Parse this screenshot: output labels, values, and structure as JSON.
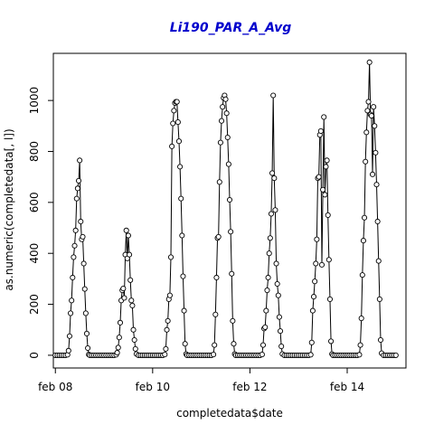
{
  "chart_data": {
    "type": "line",
    "title": "Li190_PAR_A_Avg",
    "xlabel": "completedata$date",
    "ylabel": "as.numeric(completedata[, l])",
    "ylim": [
      -50,
      1185
    ],
    "xlim": [
      "2008-02-07 23:00",
      "2008-02-15 05:00"
    ],
    "y_ticks": [
      0,
      200,
      400,
      600,
      800,
      1000
    ],
    "x_ticks": [
      {
        "value": "2008-02-08 00:00",
        "label": "feb 08"
      },
      {
        "value": "2008-02-10 00:00",
        "label": "feb 10"
      },
      {
        "value": "2008-02-12 00:00",
        "label": "feb 12"
      },
      {
        "value": "2008-02-14 00:00",
        "label": "feb 14"
      }
    ],
    "point_style": "open-circle",
    "line_color": "#000000",
    "series": [
      {
        "values": [
          [
            "2008-02-08 00:00",
            0
          ],
          [
            "2008-02-08 01:00",
            0
          ],
          [
            "2008-02-08 02:00",
            0
          ],
          [
            "2008-02-08 03:00",
            0
          ],
          [
            "2008-02-08 04:00",
            0
          ],
          [
            "2008-02-08 05:00",
            0
          ],
          [
            "2008-02-08 06:00",
            2
          ],
          [
            "2008-02-08 06:30",
            18
          ],
          [
            "2008-02-08 07:00",
            75
          ],
          [
            "2008-02-08 07:30",
            165
          ],
          [
            "2008-02-08 08:00",
            215
          ],
          [
            "2008-02-08 08:30",
            305
          ],
          [
            "2008-02-08 09:00",
            385
          ],
          [
            "2008-02-08 09:30",
            430
          ],
          [
            "2008-02-08 10:00",
            490
          ],
          [
            "2008-02-08 10:30",
            615
          ],
          [
            "2008-02-08 11:00",
            655
          ],
          [
            "2008-02-08 11:30",
            685
          ],
          [
            "2008-02-08 12:00",
            765
          ],
          [
            "2008-02-08 12:30",
            525
          ],
          [
            "2008-02-08 13:00",
            455
          ],
          [
            "2008-02-08 13:30",
            465
          ],
          [
            "2008-02-08 14:00",
            360
          ],
          [
            "2008-02-08 14:30",
            260
          ],
          [
            "2008-02-08 15:00",
            165
          ],
          [
            "2008-02-08 15:30",
            85
          ],
          [
            "2008-02-08 16:00",
            28
          ],
          [
            "2008-02-08 16:30",
            3
          ],
          [
            "2008-02-08 17:00",
            0
          ],
          [
            "2008-02-08 18:00",
            0
          ],
          [
            "2008-02-08 19:00",
            0
          ],
          [
            "2008-02-08 20:00",
            0
          ],
          [
            "2008-02-08 21:00",
            0
          ],
          [
            "2008-02-08 22:00",
            0
          ],
          [
            "2008-02-08 23:00",
            0
          ],
          [
            "2008-02-09 00:00",
            0
          ],
          [
            "2008-02-09 01:00",
            0
          ],
          [
            "2008-02-09 02:00",
            0
          ],
          [
            "2008-02-09 03:00",
            0
          ],
          [
            "2008-02-09 04:00",
            0
          ],
          [
            "2008-02-09 05:00",
            0
          ],
          [
            "2008-02-09 06:00",
            2
          ],
          [
            "2008-02-09 06:30",
            10
          ],
          [
            "2008-02-09 07:00",
            30
          ],
          [
            "2008-02-09 07:30",
            70
          ],
          [
            "2008-02-09 08:00",
            128
          ],
          [
            "2008-02-09 08:30",
            215
          ],
          [
            "2008-02-09 09:00",
            255
          ],
          [
            "2008-02-09 09:30",
            262
          ],
          [
            "2008-02-09 10:00",
            225
          ],
          [
            "2008-02-09 10:30",
            395
          ],
          [
            "2008-02-09 11:00",
            490
          ],
          [
            "2008-02-09 11:30",
            380
          ],
          [
            "2008-02-09 12:00",
            470
          ],
          [
            "2008-02-09 12:30",
            395
          ],
          [
            "2008-02-09 13:00",
            295
          ],
          [
            "2008-02-09 13:30",
            215
          ],
          [
            "2008-02-09 14:00",
            195
          ],
          [
            "2008-02-09 14:30",
            100
          ],
          [
            "2008-02-09 15:00",
            60
          ],
          [
            "2008-02-09 15:30",
            25
          ],
          [
            "2008-02-09 16:00",
            5
          ],
          [
            "2008-02-09 17:00",
            0
          ],
          [
            "2008-02-09 18:00",
            0
          ],
          [
            "2008-02-09 19:00",
            0
          ],
          [
            "2008-02-09 20:00",
            0
          ],
          [
            "2008-02-09 21:00",
            0
          ],
          [
            "2008-02-09 22:00",
            0
          ],
          [
            "2008-02-09 23:00",
            0
          ],
          [
            "2008-02-10 00:00",
            0
          ],
          [
            "2008-02-10 01:00",
            0
          ],
          [
            "2008-02-10 02:00",
            0
          ],
          [
            "2008-02-10 03:00",
            0
          ],
          [
            "2008-02-10 04:00",
            0
          ],
          [
            "2008-02-10 05:00",
            0
          ],
          [
            "2008-02-10 06:00",
            3
          ],
          [
            "2008-02-10 06:30",
            25
          ],
          [
            "2008-02-10 07:00",
            100
          ],
          [
            "2008-02-10 07:30",
            135
          ],
          [
            "2008-02-10 08:00",
            220
          ],
          [
            "2008-02-10 08:30",
            235
          ],
          [
            "2008-02-10 09:00",
            385
          ],
          [
            "2008-02-10 09:30",
            820
          ],
          [
            "2008-02-10 10:00",
            910
          ],
          [
            "2008-02-10 10:30",
            960
          ],
          [
            "2008-02-10 11:00",
            990
          ],
          [
            "2008-02-10 11:30",
            995
          ],
          [
            "2008-02-10 12:00",
            995
          ],
          [
            "2008-02-10 12:30",
            915
          ],
          [
            "2008-02-10 13:00",
            840
          ],
          [
            "2008-02-10 13:30",
            740
          ],
          [
            "2008-02-10 14:00",
            615
          ],
          [
            "2008-02-10 14:30",
            470
          ],
          [
            "2008-02-10 15:00",
            310
          ],
          [
            "2008-02-10 15:30",
            175
          ],
          [
            "2008-02-10 16:00",
            45
          ],
          [
            "2008-02-10 16:30",
            5
          ],
          [
            "2008-02-10 17:00",
            0
          ],
          [
            "2008-02-10 18:00",
            0
          ],
          [
            "2008-02-10 19:00",
            0
          ],
          [
            "2008-02-10 20:00",
            0
          ],
          [
            "2008-02-10 21:00",
            0
          ],
          [
            "2008-02-10 22:00",
            0
          ],
          [
            "2008-02-10 23:00",
            0
          ],
          [
            "2008-02-11 00:00",
            0
          ],
          [
            "2008-02-11 01:00",
            0
          ],
          [
            "2008-02-11 02:00",
            0
          ],
          [
            "2008-02-11 03:00",
            0
          ],
          [
            "2008-02-11 04:00",
            0
          ],
          [
            "2008-02-11 05:00",
            0
          ],
          [
            "2008-02-11 06:00",
            3
          ],
          [
            "2008-02-11 06:30",
            40
          ],
          [
            "2008-02-11 07:00",
            160
          ],
          [
            "2008-02-11 07:30",
            305
          ],
          [
            "2008-02-11 08:00",
            460
          ],
          [
            "2008-02-11 08:30",
            465
          ],
          [
            "2008-02-11 09:00",
            680
          ],
          [
            "2008-02-11 09:30",
            835
          ],
          [
            "2008-02-11 10:00",
            920
          ],
          [
            "2008-02-11 10:30",
            975
          ],
          [
            "2008-02-11 11:00",
            1010
          ],
          [
            "2008-02-11 11:30",
            1020
          ],
          [
            "2008-02-11 12:00",
            1005
          ],
          [
            "2008-02-11 12:30",
            950
          ],
          [
            "2008-02-11 13:00",
            855
          ],
          [
            "2008-02-11 13:30",
            750
          ],
          [
            "2008-02-11 14:00",
            610
          ],
          [
            "2008-02-11 14:30",
            485
          ],
          [
            "2008-02-11 15:00",
            320
          ],
          [
            "2008-02-11 15:30",
            135
          ],
          [
            "2008-02-11 16:00",
            45
          ],
          [
            "2008-02-11 16:30",
            5
          ],
          [
            "2008-02-11 17:00",
            0
          ],
          [
            "2008-02-11 18:00",
            0
          ],
          [
            "2008-02-11 19:00",
            0
          ],
          [
            "2008-02-11 20:00",
            0
          ],
          [
            "2008-02-11 21:00",
            0
          ],
          [
            "2008-02-11 22:00",
            0
          ],
          [
            "2008-02-11 23:00",
            0
          ],
          [
            "2008-02-12 00:00",
            0
          ],
          [
            "2008-02-12 01:00",
            0
          ],
          [
            "2008-02-12 02:00",
            0
          ],
          [
            "2008-02-12 03:00",
            0
          ],
          [
            "2008-02-12 04:00",
            0
          ],
          [
            "2008-02-12 05:00",
            0
          ],
          [
            "2008-02-12 06:00",
            3
          ],
          [
            "2008-02-12 06:30",
            40
          ],
          [
            "2008-02-12 07:00",
            105
          ],
          [
            "2008-02-12 07:30",
            110
          ],
          [
            "2008-02-12 08:00",
            175
          ],
          [
            "2008-02-12 08:30",
            255
          ],
          [
            "2008-02-12 09:00",
            305
          ],
          [
            "2008-02-12 09:30",
            400
          ],
          [
            "2008-02-12 10:00",
            460
          ],
          [
            "2008-02-12 10:30",
            555
          ],
          [
            "2008-02-12 11:00",
            715
          ],
          [
            "2008-02-12 11:30",
            1020
          ],
          [
            "2008-02-12 12:00",
            695
          ],
          [
            "2008-02-12 12:30",
            570
          ],
          [
            "2008-02-12 13:00",
            360
          ],
          [
            "2008-02-12 13:30",
            280
          ],
          [
            "2008-02-12 14:00",
            235
          ],
          [
            "2008-02-12 14:30",
            150
          ],
          [
            "2008-02-12 15:00",
            95
          ],
          [
            "2008-02-12 15:30",
            35
          ],
          [
            "2008-02-12 16:00",
            5
          ],
          [
            "2008-02-12 17:00",
            0
          ],
          [
            "2008-02-12 18:00",
            0
          ],
          [
            "2008-02-12 19:00",
            0
          ],
          [
            "2008-02-12 20:00",
            0
          ],
          [
            "2008-02-12 21:00",
            0
          ],
          [
            "2008-02-12 22:00",
            0
          ],
          [
            "2008-02-12 23:00",
            0
          ],
          [
            "2008-02-13 00:00",
            0
          ],
          [
            "2008-02-13 01:00",
            0
          ],
          [
            "2008-02-13 02:00",
            0
          ],
          [
            "2008-02-13 03:00",
            0
          ],
          [
            "2008-02-13 04:00",
            0
          ],
          [
            "2008-02-13 05:00",
            0
          ],
          [
            "2008-02-13 06:00",
            2
          ],
          [
            "2008-02-13 06:30",
            50
          ],
          [
            "2008-02-13 07:00",
            175
          ],
          [
            "2008-02-13 07:30",
            230
          ],
          [
            "2008-02-13 08:00",
            290
          ],
          [
            "2008-02-13 08:30",
            360
          ],
          [
            "2008-02-13 09:00",
            455
          ],
          [
            "2008-02-13 09:30",
            695
          ],
          [
            "2008-02-13 10:00",
            700
          ],
          [
            "2008-02-13 10:30",
            865
          ],
          [
            "2008-02-13 11:00",
            880
          ],
          [
            "2008-02-13 11:30",
            355
          ],
          [
            "2008-02-13 12:00",
            650
          ],
          [
            "2008-02-13 12:30",
            935
          ],
          [
            "2008-02-13 13:00",
            630
          ],
          [
            "2008-02-13 13:30",
            740
          ],
          [
            "2008-02-13 14:00",
            765
          ],
          [
            "2008-02-13 14:30",
            550
          ],
          [
            "2008-02-13 15:00",
            375
          ],
          [
            "2008-02-13 15:30",
            220
          ],
          [
            "2008-02-13 16:00",
            55
          ],
          [
            "2008-02-13 16:30",
            5
          ],
          [
            "2008-02-13 17:00",
            0
          ],
          [
            "2008-02-13 18:00",
            0
          ],
          [
            "2008-02-13 19:00",
            0
          ],
          [
            "2008-02-13 20:00",
            0
          ],
          [
            "2008-02-13 21:00",
            0
          ],
          [
            "2008-02-13 22:00",
            0
          ],
          [
            "2008-02-13 23:00",
            0
          ],
          [
            "2008-02-14 00:00",
            0
          ],
          [
            "2008-02-14 01:00",
            0
          ],
          [
            "2008-02-14 02:00",
            0
          ],
          [
            "2008-02-14 03:00",
            0
          ],
          [
            "2008-02-14 04:00",
            0
          ],
          [
            "2008-02-14 05:00",
            0
          ],
          [
            "2008-02-14 06:00",
            2
          ],
          [
            "2008-02-14 06:30",
            40
          ],
          [
            "2008-02-14 07:00",
            145
          ],
          [
            "2008-02-14 07:30",
            315
          ],
          [
            "2008-02-14 08:00",
            450
          ],
          [
            "2008-02-14 08:30",
            540
          ],
          [
            "2008-02-14 09:00",
            760
          ],
          [
            "2008-02-14 09:30",
            875
          ],
          [
            "2008-02-14 10:00",
            960
          ],
          [
            "2008-02-14 10:30",
            995
          ],
          [
            "2008-02-14 11:00",
            1150
          ],
          [
            "2008-02-14 11:30",
            945
          ],
          [
            "2008-02-14 12:00",
            940
          ],
          [
            "2008-02-14 12:30",
            710
          ],
          [
            "2008-02-14 13:00",
            975
          ],
          [
            "2008-02-14 13:30",
            900
          ],
          [
            "2008-02-14 14:00",
            795
          ],
          [
            "2008-02-14 14:30",
            670
          ],
          [
            "2008-02-14 15:00",
            525
          ],
          [
            "2008-02-14 15:30",
            370
          ],
          [
            "2008-02-14 16:00",
            220
          ],
          [
            "2008-02-14 16:30",
            60
          ],
          [
            "2008-02-14 17:00",
            8
          ],
          [
            "2008-02-14 18:00",
            0
          ],
          [
            "2008-02-14 19:00",
            0
          ],
          [
            "2008-02-14 20:00",
            0
          ],
          [
            "2008-02-14 21:00",
            0
          ],
          [
            "2008-02-14 22:00",
            0
          ],
          [
            "2008-02-14 23:00",
            0
          ],
          [
            "2008-02-15 00:00",
            0
          ]
        ]
      }
    ]
  }
}
